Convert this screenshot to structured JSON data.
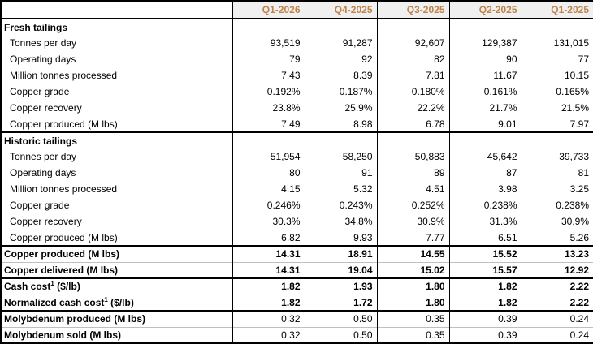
{
  "table": {
    "columns": [
      "Q1-2026",
      "Q4-2025",
      "Q3-2025",
      "Q2-2025",
      "Q1-2025"
    ],
    "sections": [
      {
        "header": "Fresh tailings",
        "rows": [
          {
            "label": "Tonnes per day",
            "values": [
              "93,519",
              "91,287",
              "92,607",
              "129,387",
              "131,015"
            ]
          },
          {
            "label": "Operating days",
            "values": [
              "79",
              "92",
              "82",
              "90",
              "77"
            ]
          },
          {
            "label": "Million tonnes processed",
            "values": [
              "7.43",
              "8.39",
              "7.81",
              "11.67",
              "10.15"
            ]
          },
          {
            "label": "Copper grade",
            "values": [
              "0.192%",
              "0.187%",
              "0.180%",
              "0.161%",
              "0.165%"
            ]
          },
          {
            "label": "Copper recovery",
            "values": [
              "23.8%",
              "25.9%",
              "22.2%",
              "21.7%",
              "21.5%"
            ]
          },
          {
            "label": "Copper produced (M lbs)",
            "values": [
              "7.49",
              "8.98",
              "6.78",
              "9.01",
              "7.97"
            ]
          }
        ]
      },
      {
        "header": "Historic tailings",
        "rows": [
          {
            "label": "Tonnes per day",
            "values": [
              "51,954",
              "58,250",
              "50,883",
              "45,642",
              "39,733"
            ]
          },
          {
            "label": "Operating days",
            "values": [
              "80",
              "91",
              "89",
              "87",
              "81"
            ]
          },
          {
            "label": "Million tonnes processed",
            "values": [
              "4.15",
              "5.32",
              "4.51",
              "3.98",
              "3.25"
            ]
          },
          {
            "label": "Copper grade",
            "values": [
              "0.246%",
              "0.243%",
              "0.252%",
              "0.238%",
              "0.238%"
            ]
          },
          {
            "label": "Copper recovery",
            "values": [
              "30.3%",
              "34.8%",
              "30.9%",
              "31.3%",
              "30.9%"
            ]
          },
          {
            "label": "Copper produced (M lbs)",
            "values": [
              "6.82",
              "9.93",
              "7.77",
              "6.51",
              "5.26"
            ]
          }
        ]
      }
    ],
    "summary_groups": [
      {
        "rows": [
          {
            "label": "Copper produced (M lbs)",
            "sup": "",
            "label_suffix": "",
            "bold_values": true,
            "values": [
              "14.31",
              "18.91",
              "14.55",
              "15.52",
              "13.23"
            ]
          },
          {
            "label": "Copper delivered (M lbs)",
            "sup": "",
            "label_suffix": "",
            "bold_values": true,
            "values": [
              "14.31",
              "19.04",
              "15.02",
              "15.57",
              "12.92"
            ]
          }
        ]
      },
      {
        "rows": [
          {
            "label": "Cash cost",
            "sup": "1",
            "label_suffix": " ($/lb)",
            "bold_values": true,
            "values": [
              "1.82",
              "1.93",
              "1.80",
              "1.82",
              "2.22"
            ]
          },
          {
            "label": "Normalized cash cost",
            "sup": "1",
            "label_suffix": " ($/lb)",
            "bold_values": true,
            "values": [
              "1.82",
              "1.72",
              "1.80",
              "1.82",
              "2.22"
            ]
          }
        ]
      },
      {
        "rows": [
          {
            "label": "Molybdenum produced (M lbs)",
            "sup": "",
            "label_suffix": "",
            "bold_values": false,
            "values": [
              "0.32",
              "0.50",
              "0.35",
              "0.39",
              "0.24"
            ]
          },
          {
            "label": "Molybdenum sold (M lbs)",
            "sup": "",
            "label_suffix": "",
            "bold_values": false,
            "values": [
              "0.32",
              "0.50",
              "0.35",
              "0.39",
              "0.24"
            ]
          }
        ]
      }
    ],
    "colors": {
      "header_text": "#BE8348",
      "header_bg": "#F0F0F0",
      "grid_border": "#000000",
      "thin_divider": "#BFBFBF"
    }
  }
}
